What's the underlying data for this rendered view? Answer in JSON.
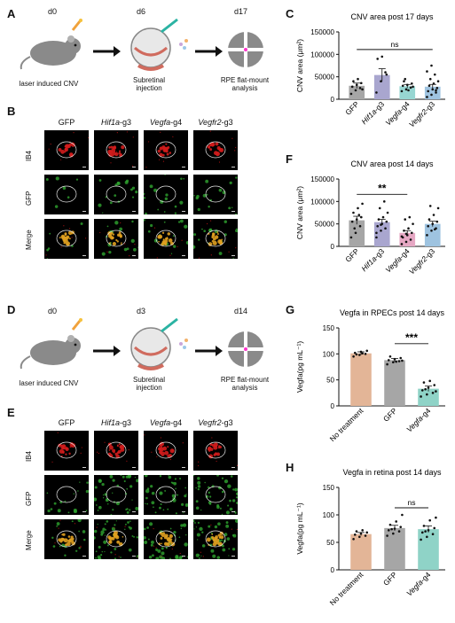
{
  "panels": {
    "A": {
      "label": "A",
      "days": [
        "d0",
        "d6",
        "d17"
      ],
      "captions": [
        "laser induced CNV",
        "Subretinal\ninjection",
        "RPE flat-mount\nanalysis"
      ]
    },
    "B": {
      "label": "B"
    },
    "C": {
      "label": "C"
    },
    "D": {
      "label": "D",
      "days": [
        "d0",
        "d3",
        "d14"
      ],
      "captions": [
        "laser induced CNV",
        "Subretinal\ninjection",
        "RPE flat-mount\nanalysis"
      ]
    },
    "E": {
      "label": "E"
    },
    "F": {
      "label": "F"
    },
    "G": {
      "label": "G"
    },
    "H": {
      "label": "H"
    }
  },
  "image_grid": {
    "columns": [
      "GFP",
      "Hif1a-g3",
      "Vegfa-g4",
      "Vegfr2-g3"
    ],
    "column_parts": [
      {
        "gene": "",
        "suffix": "GFP"
      },
      {
        "gene": "Hif1a",
        "suffix": "-g3"
      },
      {
        "gene": "Vegfa",
        "suffix": "-g4"
      },
      {
        "gene": "Vegfr2",
        "suffix": "-g3"
      }
    ],
    "rows": [
      "IB4",
      "GFP",
      "Merge"
    ]
  },
  "chart_data": [
    {
      "id": "C",
      "type": "bar",
      "title": "CNV area post 17 days",
      "ylabel": "CNV area (μm²)",
      "ylim": [
        0,
        150000
      ],
      "yticks": [
        "0",
        "50000",
        "100000",
        "150000"
      ],
      "categories": [
        "GFP",
        "Hif1a-g3",
        "Vegfa-g4",
        "Vegfr2-g3"
      ],
      "values": [
        30000,
        54000,
        29000,
        28000
      ],
      "errors": [
        6000,
        14000,
        4000,
        5000
      ],
      "colors": [
        "#a6a6a6",
        "#a9a6cf",
        "#97d6d2",
        "#9ec3e0"
      ],
      "significance": [
        {
          "from": 0,
          "to": 3,
          "label": "ns"
        }
      ],
      "points": [
        [
          12000,
          20000,
          25000,
          28000,
          32000,
          36000,
          40000,
          45000,
          22000
        ],
        [
          15000,
          40000,
          60000,
          90000,
          95000,
          55000
        ],
        [
          18000,
          22000,
          26000,
          30000,
          32000,
          35000,
          40000,
          20000,
          28000,
          45000
        ],
        [
          5000,
          10000,
          15000,
          18000,
          22000,
          25000,
          30000,
          35000,
          40000,
          45000,
          55000,
          62000,
          75000,
          20000
        ]
      ]
    },
    {
      "id": "F",
      "type": "bar",
      "title": "CNV area post 14 days",
      "ylabel": "CNV area (μm²)",
      "ylim": [
        0,
        150000
      ],
      "yticks": [
        "0",
        "50000",
        "100000",
        "150000"
      ],
      "categories": [
        "GFP",
        "Hif1a-g3",
        "Vegfa-g4",
        "Vegfr2-g3"
      ],
      "values": [
        58000,
        54000,
        30000,
        50000
      ],
      "errors": [
        9000,
        6000,
        5000,
        6000
      ],
      "colors": [
        "#a6a6a6",
        "#a9a6cf",
        "#e6a8c4",
        "#9ec3e0"
      ],
      "significance": [
        {
          "from": 0,
          "to": 2,
          "label": "**"
        }
      ],
      "points": [
        [
          20000,
          30000,
          45000,
          55000,
          60000,
          65000,
          75000,
          85000,
          95000,
          40000,
          70000
        ],
        [
          20000,
          35000,
          40000,
          45000,
          50000,
          55000,
          60000,
          65000,
          75000,
          85000,
          100000,
          30000,
          48000
        ],
        [
          5000,
          10000,
          15000,
          20000,
          25000,
          30000,
          35000,
          40000,
          50000,
          60000,
          65000,
          22000,
          28000
        ],
        [
          25000,
          35000,
          40000,
          45000,
          50000,
          55000,
          60000,
          70000,
          85000,
          90000,
          38000
        ]
      ]
    },
    {
      "id": "G",
      "type": "bar",
      "title": "Vegfa in  RPECs  post 14 days",
      "ylabel": "Vegfa(pg mL⁻¹)",
      "ylim": [
        0,
        150
      ],
      "yticks": [
        "0",
        "50",
        "100",
        "150"
      ],
      "categories": [
        "No treatment",
        "GFP",
        "Vegfa-g4"
      ],
      "values": [
        101,
        88,
        33
      ],
      "errors": [
        3,
        3,
        5
      ],
      "colors": [
        "#e3b597",
        "#a6a6a6",
        "#8fd3c7"
      ],
      "significance": [
        {
          "from": 1,
          "to": 2,
          "label": "***"
        }
      ],
      "points": [
        [
          95,
          98,
          100,
          102,
          104,
          106,
          99,
          101
        ],
        [
          80,
          84,
          86,
          88,
          90,
          92,
          95,
          85,
          87
        ],
        [
          18,
          22,
          25,
          30,
          35,
          40,
          45,
          48,
          28,
          32
        ]
      ]
    },
    {
      "id": "H",
      "type": "bar",
      "title": "Vegfa in  retina  post 14 days",
      "ylabel": "Vegfa(pg mL⁻¹)",
      "ylim": [
        0,
        150
      ],
      "yticks": [
        "0",
        "50",
        "100",
        "150"
      ],
      "categories": [
        "No treatment",
        "GFP",
        "Vegfa-g4"
      ],
      "values": [
        65,
        76,
        74
      ],
      "errors": [
        3,
        5,
        6
      ],
      "colors": [
        "#e3b597",
        "#a6a6a6",
        "#8fd3c7"
      ],
      "significance": [
        {
          "from": 1,
          "to": 2,
          "label": "ns"
        }
      ],
      "points": [
        [
          56,
          60,
          62,
          64,
          66,
          68,
          70,
          72
        ],
        [
          62,
          66,
          70,
          72,
          75,
          78,
          82,
          88,
          100,
          74
        ],
        [
          55,
          60,
          65,
          68,
          72,
          76,
          80,
          90,
          95,
          70
        ]
      ]
    }
  ]
}
